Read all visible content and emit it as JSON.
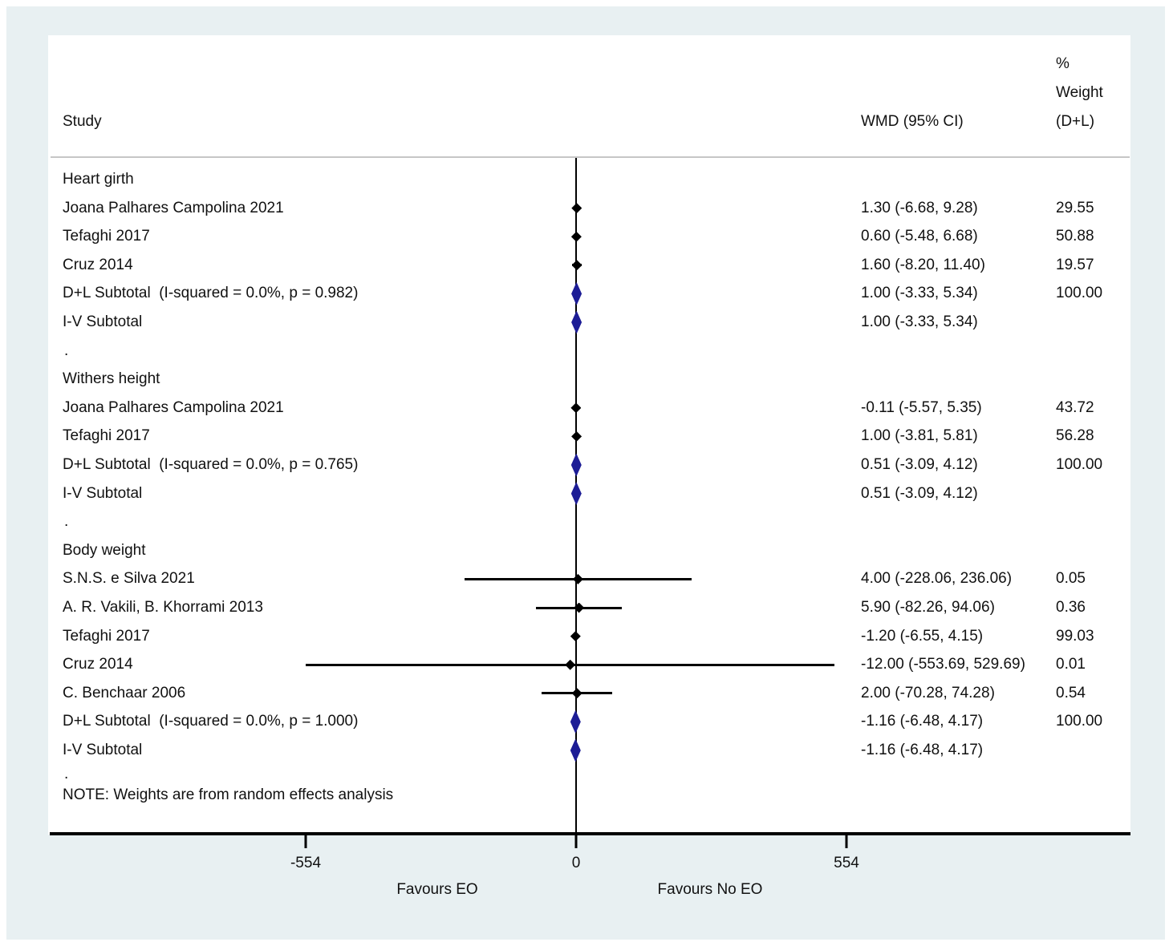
{
  "header": {
    "study_col": "Study",
    "effect_col": "WMD (95% CI)",
    "weight_col_pct": "%",
    "weight_col_word": "Weight",
    "weight_col_model": "(D+L)"
  },
  "note": {
    "dot": ".",
    "text": "NOTE: Weights are from random effects analysis"
  },
  "colors": {
    "page_background": "#e8f0f2",
    "panel_background": "#ffffff",
    "marker_black": "#000000",
    "pooled_navy": "#1d1d96",
    "separator_gray": "#c6c6c6"
  },
  "chart_data": {
    "type": "forest",
    "title": "",
    "xlabel_left": "Favours EO",
    "xlabel_right": "Favours No EO",
    "x_ticks": [
      {
        "value": -554,
        "label": "-554"
      },
      {
        "value": 0,
        "label": "0"
      },
      {
        "value": 554,
        "label": "554"
      }
    ],
    "xlim": [
      -554,
      554
    ],
    "effect_measure": "WMD (95% CI)",
    "weight_model": "(D+L)",
    "rows": [
      {
        "type": "group",
        "label": "Heart girth"
      },
      {
        "type": "study",
        "label": "Joana Palhares Campolina 2021",
        "est": 1.3,
        "lo": -6.68,
        "hi": 9.28,
        "wmd": "1.30 (-6.68, 9.28)",
        "weight": "29.55"
      },
      {
        "type": "study",
        "label": "Tefaghi 2017",
        "est": 0.6,
        "lo": -5.48,
        "hi": 6.68,
        "wmd": "0.60 (-5.48, 6.68)",
        "weight": "50.88"
      },
      {
        "type": "study",
        "label": "Cruz 2014",
        "est": 1.6,
        "lo": -8.2,
        "hi": 11.4,
        "wmd": "1.60 (-8.20, 11.40)",
        "weight": "19.57"
      },
      {
        "type": "subtotal",
        "label": "D+L Subtotal  (I-squared = 0.0%, p = 0.982)",
        "est": 1.0,
        "lo": -3.33,
        "hi": 5.34,
        "wmd": "1.00 (-3.33, 5.34)",
        "weight": "100.00"
      },
      {
        "type": "subtotal",
        "label": "I-V Subtotal",
        "est": 1.0,
        "lo": -3.33,
        "hi": 5.34,
        "wmd": "1.00 (-3.33, 5.34)",
        "weight": ""
      },
      {
        "type": "dot",
        "label": "."
      },
      {
        "type": "group",
        "label": "Withers height"
      },
      {
        "type": "study",
        "label": "Joana Palhares Campolina 2021",
        "est": -0.11,
        "lo": -5.57,
        "hi": 5.35,
        "wmd": "-0.11 (-5.57, 5.35)",
        "weight": "43.72"
      },
      {
        "type": "study",
        "label": "Tefaghi 2017",
        "est": 1.0,
        "lo": -3.81,
        "hi": 5.81,
        "wmd": "1.00 (-3.81, 5.81)",
        "weight": "56.28"
      },
      {
        "type": "subtotal",
        "label": "D+L Subtotal  (I-squared = 0.0%, p = 0.765)",
        "est": 0.51,
        "lo": -3.09,
        "hi": 4.12,
        "wmd": "0.51 (-3.09, 4.12)",
        "weight": "100.00"
      },
      {
        "type": "subtotal",
        "label": "I-V Subtotal",
        "est": 0.51,
        "lo": -3.09,
        "hi": 4.12,
        "wmd": "0.51 (-3.09, 4.12)",
        "weight": ""
      },
      {
        "type": "dot",
        "label": "."
      },
      {
        "type": "group",
        "label": "Body weight"
      },
      {
        "type": "study",
        "label": "S.N.S. e Silva 2021",
        "est": 4.0,
        "lo": -228.06,
        "hi": 236.06,
        "wmd": "4.00 (-228.06, 236.06)",
        "weight": "0.05"
      },
      {
        "type": "study",
        "label": "A. R. Vakili, B. Khorrami 2013",
        "est": 5.9,
        "lo": -82.26,
        "hi": 94.06,
        "wmd": "5.90 (-82.26, 94.06)",
        "weight": "0.36"
      },
      {
        "type": "study",
        "label": "Tefaghi 2017",
        "est": -1.2,
        "lo": -6.55,
        "hi": 4.15,
        "wmd": "-1.20 (-6.55, 4.15)",
        "weight": "99.03"
      },
      {
        "type": "study",
        "label": "Cruz 2014",
        "est": -12.0,
        "lo": -553.69,
        "hi": 529.69,
        "wmd": "-12.00 (-553.69, 529.69)",
        "weight": "0.01"
      },
      {
        "type": "study",
        "label": "C. Benchaar 2006",
        "est": 2.0,
        "lo": -70.28,
        "hi": 74.28,
        "wmd": "2.00 (-70.28, 74.28)",
        "weight": "0.54"
      },
      {
        "type": "subtotal",
        "label": "D+L Subtotal  (I-squared = 0.0%, p = 1.000)",
        "est": -1.16,
        "lo": -6.48,
        "hi": 4.17,
        "wmd": "-1.16 (-6.48, 4.17)",
        "weight": "100.00"
      },
      {
        "type": "subtotal",
        "label": "I-V Subtotal",
        "est": -1.16,
        "lo": -6.48,
        "hi": 4.17,
        "wmd": "-1.16 (-6.48, 4.17)",
        "weight": ""
      }
    ],
    "note": "NOTE: Weights are from random effects analysis"
  }
}
